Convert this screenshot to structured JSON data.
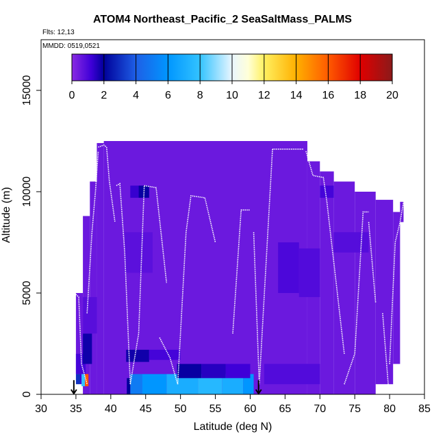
{
  "header": {
    "title": "ATOM4 Northeast_Pacific_2 SeaSaltMass_PALMS",
    "flights": "Flts: 12,13",
    "dates": "MMDD: 0519,0521"
  },
  "chart_data": {
    "type": "heatmap",
    "title": "ATOM4 Northeast_Pacific_2 SeaSaltMass_PALMS",
    "xlabel": "Latitude (deg N)",
    "ylabel": "Altitude (m)",
    "xlim": [
      30,
      85
    ],
    "ylim": [
      0,
      17500
    ],
    "xticks": [
      30,
      35,
      40,
      45,
      50,
      55,
      60,
      65,
      70,
      75,
      80,
      85
    ],
    "yticks": [
      0,
      5000,
      10000,
      15000
    ],
    "colorbar": {
      "range": [
        0,
        20
      ],
      "ticks": [
        0,
        2,
        4,
        6,
        8,
        10,
        12,
        14,
        16,
        18,
        20
      ],
      "stops": [
        {
          "v": 0,
          "c": "#8a2be2"
        },
        {
          "v": 1.2,
          "c": "#3f00d8"
        },
        {
          "v": 2,
          "c": "#00009a"
        },
        {
          "v": 4,
          "c": "#1e5fe6"
        },
        {
          "v": 6,
          "c": "#0096ff"
        },
        {
          "v": 8,
          "c": "#33c3ff"
        },
        {
          "v": 10,
          "c": "#e9f6ff"
        },
        {
          "v": 11,
          "c": "#ffffd8"
        },
        {
          "v": 12,
          "c": "#fff060"
        },
        {
          "v": 14,
          "c": "#ffb000"
        },
        {
          "v": 16,
          "c": "#ff5a00"
        },
        {
          "v": 18,
          "c": "#e00000"
        },
        {
          "v": 20,
          "c": "#8b1a1a"
        }
      ]
    },
    "background_value": 0.5,
    "columns": [
      {
        "lat": [
          35.0,
          36.0
        ],
        "alt": [
          1000,
          5000
        ]
      },
      {
        "lat": [
          36.0,
          37.0
        ],
        "alt": [
          0,
          8800
        ]
      },
      {
        "lat": [
          37.0,
          38.0
        ],
        "alt": [
          0,
          10500
        ]
      },
      {
        "lat": [
          38.0,
          39.0
        ],
        "alt": [
          0,
          12400
        ]
      },
      {
        "lat": [
          39.0,
          68.2
        ],
        "alt": [
          0,
          12500
        ]
      },
      {
        "lat": [
          68.2,
          70.0
        ],
        "alt": [
          0,
          11500
        ]
      },
      {
        "lat": [
          70.0,
          72.0
        ],
        "alt": [
          0,
          11000
        ]
      },
      {
        "lat": [
          72.0,
          75.0
        ],
        "alt": [
          0,
          10500
        ]
      },
      {
        "lat": [
          75.0,
          78.0
        ],
        "alt": [
          0,
          10000
        ]
      },
      {
        "lat": [
          78.0,
          80.5
        ],
        "alt": [
          500,
          9600
        ]
      },
      {
        "lat": [
          80.5,
          81.5
        ],
        "alt": [
          1500,
          9000
        ]
      },
      {
        "lat": [
          81.5,
          82.0
        ],
        "alt": [
          8500,
          9500
        ]
      }
    ],
    "patches": [
      {
        "lat": [
          35.0,
          35.6
        ],
        "alt": [
          500,
          1000
        ],
        "v": 3
      },
      {
        "lat": [
          35.6,
          36.6
        ],
        "alt": [
          500,
          1000
        ],
        "v": 1.2
      },
      {
        "lat": [
          35.0,
          36.4
        ],
        "alt": [
          1000,
          2000
        ],
        "v": 1.1
      },
      {
        "lat": [
          36.0,
          37.3
        ],
        "alt": [
          1500,
          3000
        ],
        "v": 1.8
      },
      {
        "lat": [
          35.8,
          36.3
        ],
        "alt": [
          400,
          1000
        ],
        "v": 8
      },
      {
        "lat": [
          36.3,
          36.8
        ],
        "alt": [
          400,
          1000
        ],
        "v": 16
      },
      {
        "lat": [
          36.0,
          38.0
        ],
        "alt": [
          3000,
          4800
        ],
        "v": 0.8
      },
      {
        "lat": [
          42.3,
          42.8
        ],
        "alt": [
          0,
          800
        ],
        "v": 2
      },
      {
        "lat": [
          42.8,
          44.5
        ],
        "alt": [
          0,
          1000
        ],
        "v": 5
      },
      {
        "lat": [
          44.5,
          48.0
        ],
        "alt": [
          0,
          1000
        ],
        "v": 6
      },
      {
        "lat": [
          48.0,
          52.5
        ],
        "alt": [
          0,
          1000
        ],
        "v": 7
      },
      {
        "lat": [
          52.5,
          56.0
        ],
        "alt": [
          0,
          1000
        ],
        "v": 7.5
      },
      {
        "lat": [
          56.0,
          59.0
        ],
        "alt": [
          0,
          1000
        ],
        "v": 7
      },
      {
        "lat": [
          59.0,
          60.5
        ],
        "alt": [
          0,
          1000
        ],
        "v": 6
      },
      {
        "lat": [
          49.5,
          53.0
        ],
        "alt": [
          800,
          1500
        ],
        "v": 1.9
      },
      {
        "lat": [
          53.0,
          56.5
        ],
        "alt": [
          800,
          1500
        ],
        "v": 1.5
      },
      {
        "lat": [
          56.5,
          60.0
        ],
        "alt": [
          800,
          1500
        ],
        "v": 1.2
      },
      {
        "lat": [
          42.2,
          45.5
        ],
        "alt": [
          1600,
          2200
        ],
        "v": 1.8
      },
      {
        "lat": [
          45.5,
          50.0
        ],
        "alt": [
          1700,
          2200
        ],
        "v": 1.1
      },
      {
        "lat": [
          62.0,
          70.0
        ],
        "alt": [
          500,
          1500
        ],
        "v": 0.9
      },
      {
        "lat": [
          44.0,
          45.5
        ],
        "alt": [
          9700,
          10300
        ],
        "v": 1.9
      },
      {
        "lat": [
          42.8,
          44.0
        ],
        "alt": [
          9700,
          10300
        ],
        "v": 1.3
      },
      {
        "lat": [
          64.0,
          67.0
        ],
        "alt": [
          5000,
          7500
        ],
        "v": 1.0
      },
      {
        "lat": [
          67.0,
          70.0
        ],
        "alt": [
          4800,
          7200
        ],
        "v": 0.9
      },
      {
        "lat": [
          70.0,
          72.0
        ],
        "alt": [
          9700,
          10300
        ],
        "v": 1.1
      },
      {
        "lat": [
          72.0,
          77.0
        ],
        "alt": [
          7000,
          8000
        ],
        "v": 0.85
      },
      {
        "lat": [
          42.0,
          46.0
        ],
        "alt": [
          6000,
          8000
        ],
        "v": 0.75
      }
    ],
    "profiles": [
      {
        "lat": [
          34.8,
          35.4,
          35.8,
          36.6
        ],
        "alt": [
          5000,
          4800,
          1500,
          500
        ]
      },
      {
        "lat": [
          36.6,
          37.3,
          37.8,
          38.2
        ],
        "alt": [
          4000,
          8000,
          10000,
          12000
        ]
      },
      {
        "lat": [
          38.2,
          39.0,
          39.4
        ],
        "alt": [
          12200,
          12300,
          12200
        ]
      },
      {
        "lat": [
          39.4,
          39.8,
          40.6
        ],
        "alt": [
          12200,
          10500,
          8500
        ]
      },
      {
        "lat": [
          40.8,
          41.3,
          42.0,
          42.8
        ],
        "alt": [
          10300,
          10400,
          7000,
          500
        ]
      },
      {
        "lat": [
          42.8,
          44.0,
          44.8
        ],
        "alt": [
          500,
          3000,
          10300
        ]
      },
      {
        "lat": [
          44.8,
          46.5,
          48.0
        ],
        "alt": [
          10300,
          10200,
          5500
        ]
      },
      {
        "lat": [
          47.0,
          48.5,
          49.6
        ],
        "alt": [
          2800,
          1800,
          500
        ]
      },
      {
        "lat": [
          49.6,
          50.8,
          51.5,
          53.5
        ],
        "alt": [
          500,
          8000,
          9800,
          9700
        ]
      },
      {
        "lat": [
          53.5,
          55.0
        ],
        "alt": [
          9700,
          7500
        ]
      },
      {
        "lat": [
          57.5,
          58.7,
          60.0
        ],
        "alt": [
          3000,
          9100,
          9100
        ]
      },
      {
        "lat": [
          60.5,
          61.3,
          62.2,
          63.2
        ],
        "alt": [
          8000,
          500,
          6000,
          12100
        ]
      },
      {
        "lat": [
          63.2,
          67.7
        ],
        "alt": [
          12100,
          12100
        ]
      },
      {
        "lat": [
          68.0,
          69.0,
          70.5,
          71.0,
          73.5
        ],
        "alt": [
          12000,
          10800,
          10700,
          9500,
          2000
        ]
      },
      {
        "lat": [
          73.5,
          75.0,
          76.2,
          77.0
        ],
        "alt": [
          500,
          2000,
          9000,
          9000
        ]
      },
      {
        "lat": [
          77.0,
          78.0
        ],
        "alt": [
          8500,
          4500
        ]
      },
      {
        "lat": [
          79.0,
          79.8
        ],
        "alt": [
          4000,
          500
        ]
      },
      {
        "lat": [
          80.0,
          80.8,
          81.5,
          82.0
        ],
        "alt": [
          1500,
          7500,
          8500,
          9500
        ]
      }
    ],
    "markers": [
      {
        "lat": 34.7,
        "alt": 700
      },
      {
        "lat": 61.2,
        "alt": 700
      }
    ]
  }
}
